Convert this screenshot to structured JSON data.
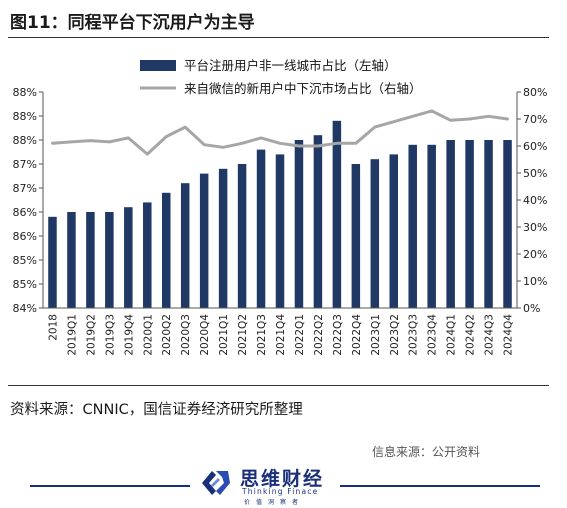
{
  "figure": {
    "title": "图11：同程平台下沉用户为主导",
    "source": "资料来源：CNNIC，国信证券经济研究所整理",
    "credit": "信息来源：公开资料"
  },
  "logo": {
    "name": "思维财经",
    "sub": "Thinking Finace",
    "sub2": "价值洞察者"
  },
  "colors": {
    "bar": "#1f3864",
    "line": "#a6a6a6"
  },
  "chart_data": {
    "type": "bar",
    "categories": [
      "2018",
      "2019Q1",
      "2019Q2",
      "2019Q3",
      "2019Q4",
      "2020Q1",
      "2020Q2",
      "2020Q3",
      "2020Q4",
      "2021Q1",
      "2021Q2",
      "2021Q3",
      "2021Q4",
      "2022Q1",
      "2022Q2",
      "2022Q3",
      "2022Q4",
      "2023Q1",
      "2023Q2",
      "2023Q3",
      "2023Q4",
      "2024Q1",
      "2024Q2",
      "2024Q3",
      "2024Q4"
    ],
    "series": [
      {
        "name": "平台注册用户非一线城市占比（左轴）",
        "type": "bar",
        "axis": "left",
        "values": [
          85.9,
          86.0,
          86.0,
          86.0,
          86.1,
          86.2,
          86.4,
          86.6,
          86.8,
          86.9,
          87.0,
          87.3,
          87.2,
          87.5,
          87.6,
          87.9,
          87.0,
          87.1,
          87.2,
          87.4,
          87.4,
          87.5,
          87.5,
          87.5,
          87.5
        ]
      },
      {
        "name": "来自微信的新用户中下沉市场占比（右轴）",
        "type": "line",
        "axis": "right",
        "values": [
          61,
          61.5,
          62,
          61.5,
          63,
          57,
          63.5,
          67,
          60.5,
          59.5,
          61,
          63,
          61,
          60,
          60,
          61,
          61,
          67,
          69,
          71,
          73,
          69.5,
          70,
          71,
          70
        ]
      }
    ],
    "y_left": {
      "ylim": [
        84,
        88.5
      ],
      "ticks": [
        84,
        84.5,
        85,
        85.5,
        86,
        86.5,
        87,
        87.5,
        88,
        88.5
      ],
      "tick_labels": [
        "84%",
        "85%",
        "85%",
        "86%",
        "86%",
        "87%",
        "87%",
        "88%",
        "88%",
        "88%"
      ]
    },
    "y_right": {
      "ylim": [
        0,
        80
      ],
      "ticks": [
        0,
        10,
        20,
        30,
        40,
        50,
        60,
        70,
        80
      ],
      "tick_labels": [
        "0%",
        "10%",
        "20%",
        "30%",
        "40%",
        "50%",
        "60%",
        "70%",
        "80%"
      ]
    },
    "grid": false,
    "legend": "top-center"
  }
}
